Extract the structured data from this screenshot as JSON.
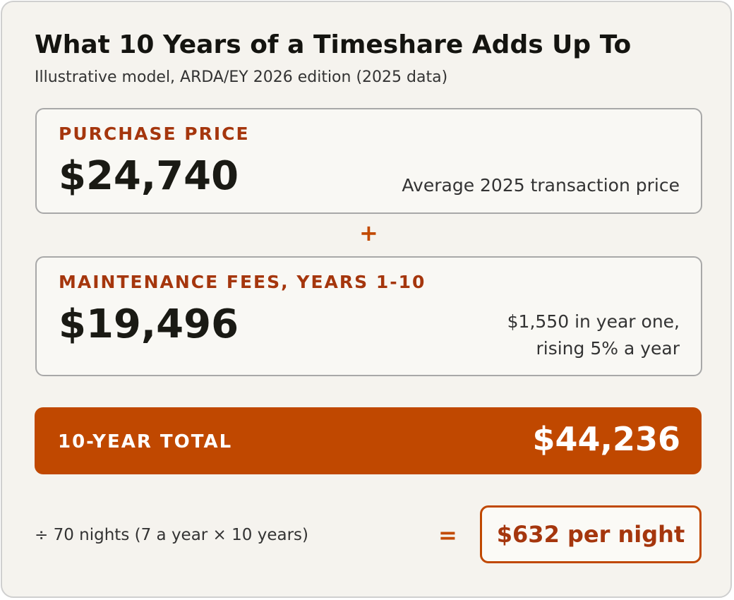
{
  "header": {
    "title": "What 10 Years of a Timeshare Adds Up To",
    "subtitle": "Illustrative model, ARDA/EY 2026 edition (2025 data)"
  },
  "purchase": {
    "label": "PURCHASE PRICE",
    "amount": "$24,740",
    "note": "Average 2025 transaction price"
  },
  "plus": "+",
  "fees": {
    "label": "MAINTENANCE FEES, YEARS 1-10",
    "amount": "$19,496",
    "note_lines": [
      "$1,550 in year one,",
      "rising 5% a year"
    ]
  },
  "total": {
    "label": "10-YEAR TOTAL",
    "amount": "$44,236"
  },
  "per_night": {
    "divisor": "÷ 70 nights (7 a year × 10 years)",
    "equals": "=",
    "result": "$632 per night"
  }
}
